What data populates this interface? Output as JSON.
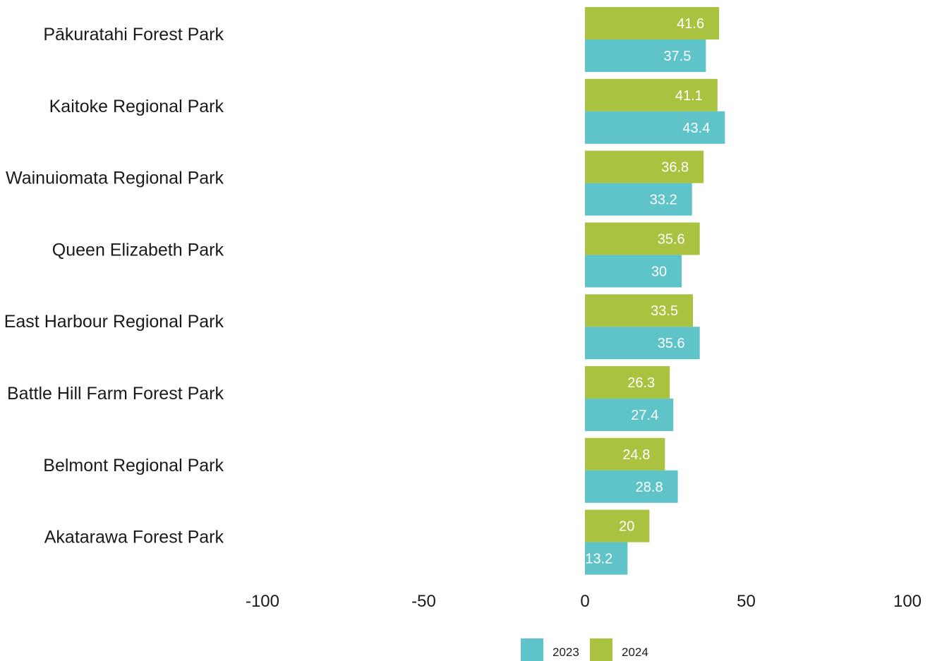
{
  "chart_data": {
    "type": "bar",
    "orientation": "horizontal",
    "categories": [
      "Pākuratahi Forest Park",
      "Kaitoke Regional Park",
      "Wainuiomata Regional Park",
      "Queen Elizabeth Park",
      "East Harbour Regional Park",
      "Battle Hill Farm Forest Park",
      "Belmont Regional Park",
      "Akatarawa Forest Park"
    ],
    "series": [
      {
        "name": "2024",
        "color": "#a9c23f",
        "values": [
          41.6,
          41.1,
          36.8,
          35.6,
          33.5,
          26.3,
          24.8,
          20
        ],
        "labels": [
          "41.6",
          "41.1",
          "36.8",
          "35.6",
          "33.5",
          "26.3",
          "24.8",
          "20"
        ]
      },
      {
        "name": "2023",
        "color": "#5ec4c9",
        "values": [
          37.5,
          43.4,
          33.2,
          30,
          35.6,
          27.4,
          28.8,
          13.2
        ],
        "labels": [
          "37.5",
          "43.4",
          "33.2",
          "30",
          "35.6",
          "27.4",
          "28.8",
          "13.2"
        ]
      }
    ],
    "xlim": [
      -100,
      100
    ],
    "xticks": [
      -100,
      -50,
      0,
      50,
      100
    ],
    "xtick_labels": [
      "-100",
      "-50",
      "0",
      "50",
      "100"
    ],
    "legend": {
      "placement": "bottom-center",
      "items": [
        {
          "name": "2023",
          "color": "#5ec4c9"
        },
        {
          "name": "2024",
          "color": "#a9c23f"
        }
      ]
    },
    "grid": false
  }
}
